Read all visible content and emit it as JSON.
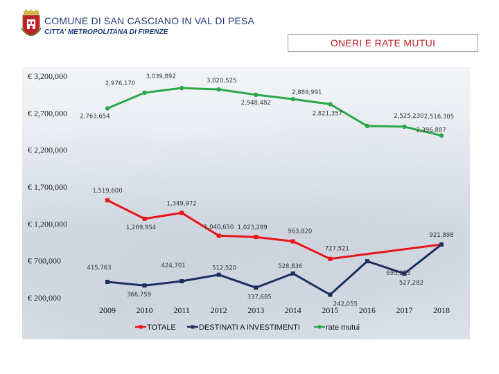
{
  "header": {
    "org_title": "COMUNE DI SAN CASCIANO IN VAL DI PESA",
    "org_subtitle": "CITTA' METROPOLITANA DI FIRENZE",
    "slide_title": "ONERI E RATE MUTUI"
  },
  "colors": {
    "totale": "#e8141a",
    "investimenti": "#1b2f5e",
    "rate": "#2aa84a",
    "title": "#1f3c78",
    "accent": "#c0202a"
  },
  "chart_data": {
    "type": "line",
    "title": "ONERI E RATE MUTUI",
    "categories": [
      "2009",
      "2010",
      "2011",
      "2012",
      "2013",
      "2014",
      "2015",
      "2016",
      "2017",
      "2018"
    ],
    "yticks": [
      "€ 3,200,000",
      "€ 2,700,000",
      "€ 2,200,000",
      "€ 1,700,000",
      "€ 1,200,000",
      "€ 700,000",
      "€ 200,000"
    ],
    "ytick_values": [
      3200000,
      2700000,
      2200000,
      1700000,
      1200000,
      700000,
      200000
    ],
    "ylim": [
      200000,
      3200000
    ],
    "legend_position": "bottom",
    "series": [
      {
        "name": "TOTALE",
        "values": [
          1519600,
          1269954,
          1349972,
          1040650,
          1023289,
          963820,
          727521,
          null,
          null,
          921898
        ],
        "labels": [
          "1,519,600",
          "1,269,954",
          "1,349,972",
          "1,040,650",
          "1,023,289",
          "963,820",
          "727,521",
          null,
          null,
          "921,898"
        ]
      },
      {
        "name": "DESTINATI A INVESTIMENTI",
        "values": [
          415763,
          366759,
          424701,
          512520,
          337685,
          528836,
          242055,
          695253,
          527282,
          921898
        ],
        "labels": [
          "415,763",
          "366,759",
          "424,701",
          "512,520",
          "337,685",
          "528,836",
          "242,055",
          "695,253",
          "527,282",
          null
        ]
      },
      {
        "name": "rate mutui",
        "values": [
          2763654,
          2976170,
          3039892,
          3020525,
          2948482,
          2889991,
          2821357,
          2525230,
          2516305,
          2396887
        ],
        "labels": [
          "2,763,654",
          "2,976,170",
          "3,039,892",
          "3,020,525",
          "2,948,482",
          "2,889,991",
          "2,821,357",
          "2,525,230",
          "2,516,305",
          "2,396,887"
        ]
      }
    ]
  }
}
